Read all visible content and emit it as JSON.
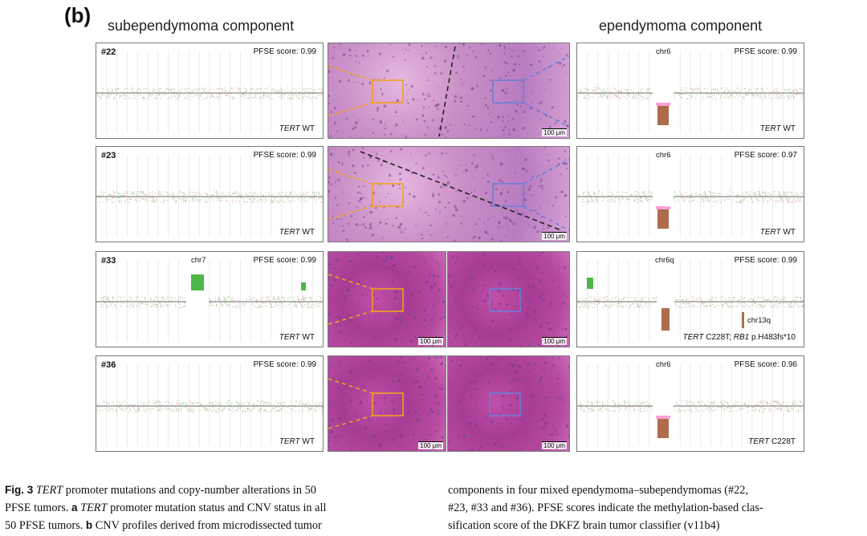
{
  "panel_label": "(b)",
  "titles": {
    "left": "subependymoma component",
    "right": "ependymoma component"
  },
  "rows": [
    {
      "case": "#22",
      "left": {
        "score": "PFSE score: 0.99",
        "status_gene": "TERT",
        "status_rest": " WT",
        "chr_label": ""
      },
      "right": {
        "score": "PFSE score: 0.99",
        "status_gene": "TERT",
        "status_rest": " WT",
        "chr_label": "chr6",
        "chr_label2": ""
      },
      "scale": [
        "100 μm"
      ]
    },
    {
      "case": "#23",
      "left": {
        "score": "PFSE score: 0.99",
        "status_gene": "TERT",
        "status_rest": " WT",
        "chr_label": ""
      },
      "right": {
        "score": "PFSE score: 0.97",
        "status_gene": "TERT",
        "status_rest": " WT",
        "chr_label": "chr6",
        "chr_label2": ""
      },
      "scale": [
        "100 μm"
      ]
    },
    {
      "case": "#33",
      "left": {
        "score": "PFSE score: 0.99",
        "status_gene": "TERT",
        "status_rest": " WT",
        "chr_label": "chr7"
      },
      "right": {
        "score": "PFSE score: 0.99",
        "status_gene": "TERT",
        "status_rest": " C228T; ",
        "status_gene2": "RB1",
        "status_rest2": " p.H483fs*10",
        "chr_label": "chr6q",
        "chr_label2": "chr13q"
      },
      "scale": [
        "100 μm",
        "100 μm"
      ]
    },
    {
      "case": "#36",
      "left": {
        "score": "PFSE score: 0.99",
        "status_gene": "TERT",
        "status_rest": " WT",
        "chr_label": ""
      },
      "right": {
        "score": "PFSE score: 0.96",
        "status_gene": "TERT",
        "status_rest": " C228T",
        "chr_label": "chr6",
        "chr_label2": ""
      },
      "scale": [
        "100 μm",
        "100 μm"
      ]
    }
  ],
  "caption": {
    "fig": "Fig. 3",
    "col1_l1_gene": "TERT",
    "col1_l1": " promoter mutations and copy-number alterations in 50",
    "col1_l2a": "PFSE tumors. ",
    "col1_l2b": "a",
    "col1_l2gene": " TERT",
    "col1_l2c": " promoter mutation status and CNV status in all",
    "col1_l3a": "50 PFSE tumors. ",
    "col1_l3b": "b",
    "col1_l3c": " CNV profiles derived from microdissected tumor",
    "col2_l1": "components in four mixed ependymoma–subependymomas (#22,",
    "col2_l2": "#23, #33 and #36). PFSE scores indicate the methylation-based clas-",
    "col2_l3": "sification score of the DKFZ brain tumor classifier (v11b4)"
  },
  "colors": {
    "baseline": "#8a8a8a",
    "gain": "#2faa2a",
    "loss": "#c0392b",
    "he_pink": "#d36fb8",
    "box_orange": "#f0a21f",
    "box_blue": "#6b7fd6"
  }
}
